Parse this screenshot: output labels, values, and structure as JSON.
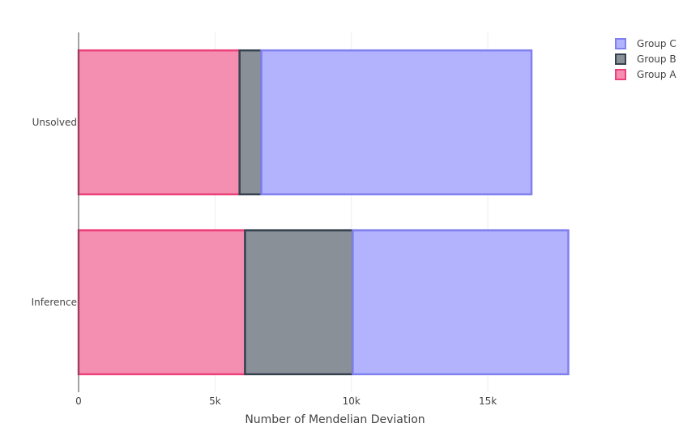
{
  "chart_data": {
    "type": "bar",
    "orientation": "horizontal",
    "barmode": "stack",
    "categories": [
      "Unsolved",
      "Inference"
    ],
    "series": [
      {
        "name": "Group A",
        "values": [
          5900,
          6100
        ],
        "fill": "#f48fb1",
        "line": "#ec407a"
      },
      {
        "name": "Group B",
        "values": [
          800,
          3950
        ],
        "fill": "#8a9098",
        "line": "#37424f"
      },
      {
        "name": "Group C",
        "values": [
          9900,
          7900
        ],
        "fill": "#b3b3fd",
        "line": "#8080ee"
      }
    ],
    "xlabel": "Number of Mendelian Deviation",
    "ylabel": "",
    "xlim": [
      0,
      18500
    ],
    "xticks": [
      0,
      5000,
      10000,
      15000
    ],
    "xtick_labels": [
      "0",
      "5k",
      "10k",
      "15k"
    ],
    "grid": true,
    "legend": {
      "placement": "top-right",
      "order": [
        "Group C",
        "Group B",
        "Group A"
      ]
    }
  }
}
